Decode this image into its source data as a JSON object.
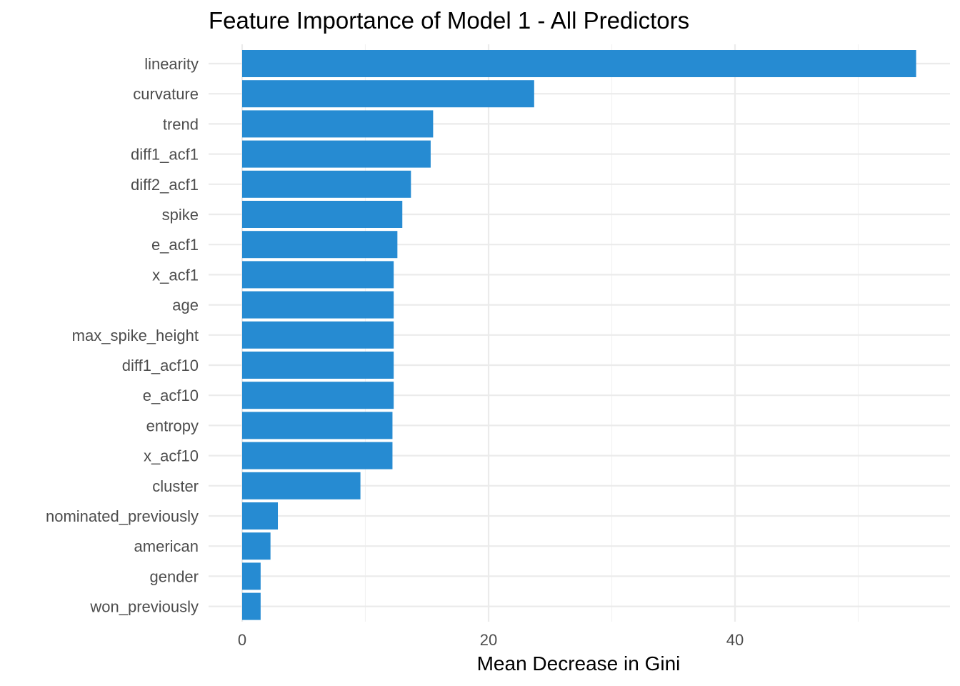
{
  "chart_data": {
    "type": "bar",
    "orientation": "horizontal",
    "title": "Feature Importance of Model 1 - All Predictors",
    "xlabel": "Mean Decrease in Gini",
    "ylabel": "",
    "xlim": [
      0,
      57
    ],
    "x_ticks": [
      0,
      20,
      40
    ],
    "x_minor_ticks": [
      10,
      30,
      50
    ],
    "grid": true,
    "bar_color": "#268bd2",
    "categories": [
      "linearity",
      "curvature",
      "trend",
      "diff1_acf1",
      "diff2_acf1",
      "spike",
      "e_acf1",
      "x_acf1",
      "age",
      "max_spike_height",
      "diff1_acf10",
      "e_acf10",
      "entropy",
      "x_acf10",
      "cluster",
      "nominated_previously",
      "american",
      "gender",
      "won_previously"
    ],
    "values": [
      54.7,
      23.7,
      15.5,
      15.3,
      13.7,
      13.0,
      12.6,
      12.3,
      12.3,
      12.3,
      12.3,
      12.3,
      12.2,
      12.2,
      9.6,
      2.9,
      2.3,
      1.5,
      1.5
    ]
  }
}
